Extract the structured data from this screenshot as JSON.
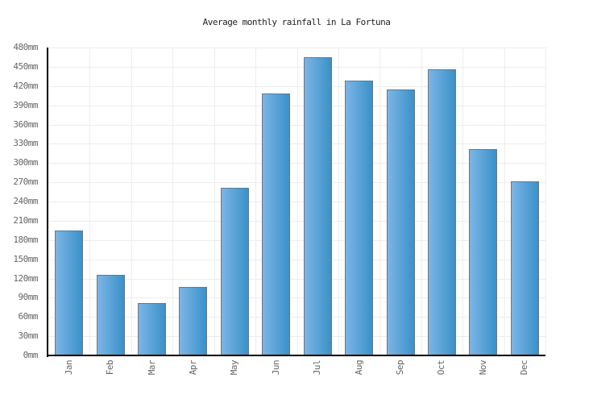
{
  "title": "Average monthly rainfall in La Fortuna",
  "chart_data": {
    "type": "bar",
    "title": "Average monthly rainfall in La Fortuna",
    "categories": [
      "Jan",
      "Feb",
      "Mar",
      "Apr",
      "May",
      "Jun",
      "Jul",
      "Aug",
      "Sep",
      "Oct",
      "Nov",
      "Dec"
    ],
    "values": [
      195,
      126,
      82,
      107,
      261,
      409,
      465,
      428,
      415,
      446,
      322,
      272
    ],
    "unit": "mm",
    "xlabel": "",
    "ylabel": "",
    "ylim": [
      0,
      480
    ],
    "ytick_step": 30,
    "ytick_labels": [
      "0mm",
      "30mm",
      "60mm",
      "90mm",
      "120mm",
      "150mm",
      "180mm",
      "210mm",
      "240mm",
      "270mm",
      "300mm",
      "330mm",
      "360mm",
      "390mm",
      "420mm",
      "450mm",
      "480mm"
    ],
    "grid": true,
    "legend_position": "none"
  },
  "colors": {
    "background": "#ffffff",
    "bar_gradient_left": "#7cb5e6",
    "bar_gradient_right": "#3a91c8",
    "bar_border": "#757575",
    "axis_line": "#000000",
    "gridline": "#ededed",
    "tick_label_text": "#666666",
    "title_text": "#222222"
  }
}
